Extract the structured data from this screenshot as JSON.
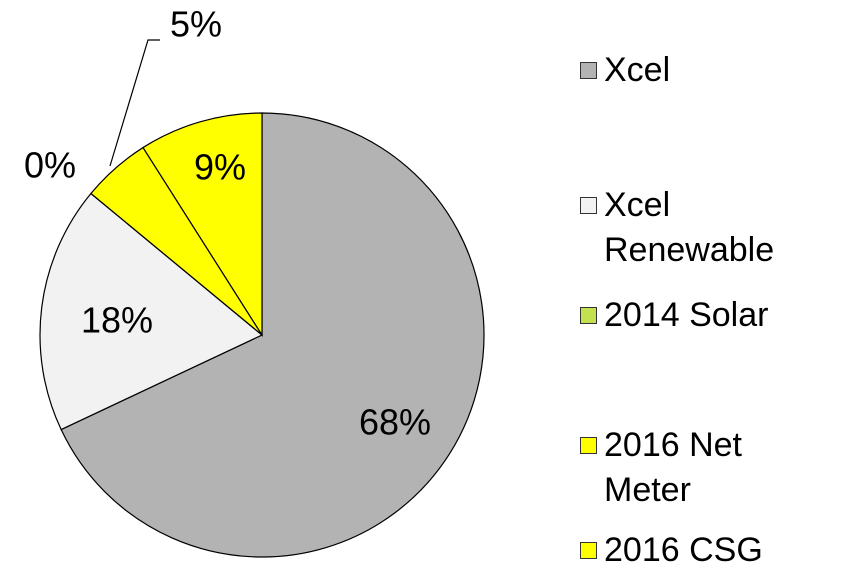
{
  "chart_data": {
    "type": "pie",
    "categories": [
      "Xcel",
      "Xcel Renewable",
      "2014 Solar",
      "2016 Net Meter",
      "2016 CSG"
    ],
    "values": [
      68,
      18,
      0,
      5,
      9
    ],
    "value_labels": [
      "68%",
      "18%",
      "0%",
      "5%",
      "9%"
    ],
    "colors": [
      "#b3b3b3",
      "#f2f2f2",
      "#c3e04f",
      "#ffff00",
      "#ffff00"
    ]
  }
}
